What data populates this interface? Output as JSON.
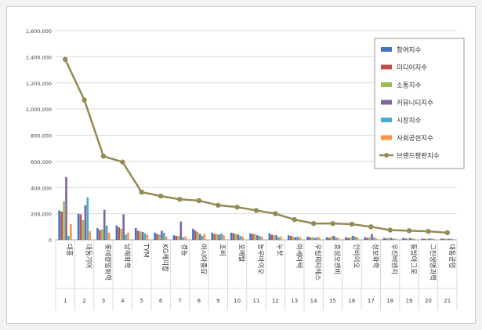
{
  "chart_data": {
    "type": "bar",
    "categories": [
      "대흥",
      "대동기어",
      "롯데정밀화학",
      "남해화학",
      "TYM",
      "KG케미칼",
      "경농",
      "아시아종묘",
      "조비",
      "포메탈",
      "농우바이오",
      "누보",
      "아세아텍",
      "우림피티에스",
      "효성오앤비",
      "인바이오",
      "성보화학",
      "우진비앤지",
      "동방아그로",
      "그린생명과학",
      "대동공업"
    ],
    "x_numbers": [
      "1",
      "2",
      "3",
      "4",
      "5",
      "6",
      "7",
      "8",
      "9",
      "10",
      "11",
      "12",
      "13",
      "14",
      "15",
      "16",
      "17",
      "18",
      "19",
      "20",
      "21"
    ],
    "ylim": [
      0,
      1600000
    ],
    "yticks": [
      0,
      200000,
      400000,
      600000,
      800000,
      1000000,
      1200000,
      1400000,
      1600000
    ],
    "ytick_labels": [
      "0",
      "200,000",
      "400,000",
      "600,000",
      "800,000",
      "1,000,000",
      "1,200,000",
      "1,400,000",
      "1,600,000"
    ],
    "grid": true,
    "legend_position": "right",
    "series": [
      {
        "name": "참여지수",
        "kind": "bar",
        "color": "#4472c4",
        "values": [
          225000,
          200000,
          90000,
          110000,
          90000,
          55000,
          35000,
          85000,
          55000,
          55000,
          50000,
          50000,
          35000,
          25000,
          20000,
          20000,
          20000,
          15000,
          15000,
          10000,
          10000
        ]
      },
      {
        "name": "미디어지수",
        "kind": "bar",
        "color": "#c0504d",
        "values": [
          215000,
          195000,
          75000,
          95000,
          70000,
          45000,
          30000,
          70000,
          45000,
          50000,
          45000,
          40000,
          30000,
          20000,
          15000,
          15000,
          15000,
          10000,
          10000,
          8000,
          8000
        ]
      },
      {
        "name": "소통지수",
        "kind": "bar",
        "color": "#9bbb59",
        "values": [
          295000,
          150000,
          80000,
          85000,
          65000,
          40000,
          30000,
          60000,
          45000,
          45000,
          45000,
          35000,
          25000,
          20000,
          25000,
          20000,
          20000,
          15000,
          10000,
          8000,
          8000
        ]
      },
      {
        "name": "커뮤니티지수",
        "kind": "bar",
        "color": "#8064a2",
        "values": [
          480000,
          265000,
          230000,
          195000,
          60000,
          70000,
          140000,
          45000,
          40000,
          40000,
          35000,
          35000,
          20000,
          15000,
          30000,
          30000,
          45000,
          15000,
          15000,
          10000,
          8000
        ]
      },
      {
        "name": "시장지수",
        "kind": "bar",
        "color": "#4bacc6",
        "values": [
          30000,
          325000,
          110000,
          40000,
          50000,
          55000,
          20000,
          30000,
          50000,
          30000,
          30000,
          20000,
          25000,
          20000,
          20000,
          25000,
          20000,
          10000,
          10000,
          10000,
          10000
        ]
      },
      {
        "name": "사회공헌지수",
        "kind": "bar",
        "color": "#f79646",
        "values": [
          120000,
          65000,
          55000,
          55000,
          40000,
          25000,
          25000,
          45000,
          35000,
          25000,
          25000,
          25000,
          20000,
          20000,
          15000,
          20000,
          10000,
          10000,
          8000,
          8000,
          6000
        ]
      },
      {
        "name": "브랜드평판지수",
        "kind": "line",
        "color": "#948a54",
        "values": [
          1380000,
          1070000,
          640000,
          595000,
          365000,
          335000,
          310000,
          300000,
          265000,
          250000,
          225000,
          200000,
          155000,
          125000,
          125000,
          120000,
          100000,
          75000,
          70000,
          65000,
          55000
        ]
      }
    ]
  }
}
